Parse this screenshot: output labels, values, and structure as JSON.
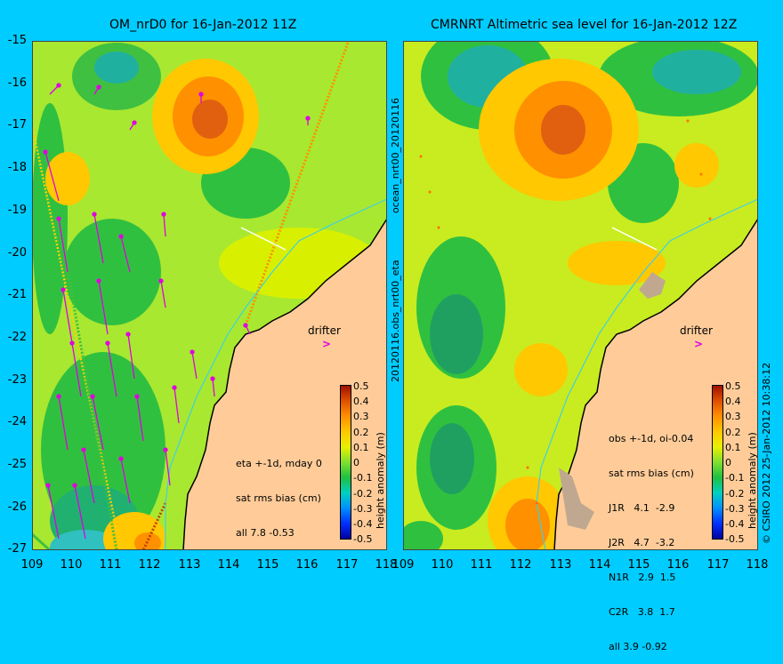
{
  "left_panel": {
    "title": "OM_nrD0 for 16-Jan-2012 11Z",
    "stats_lines": [
      "eta +-1d, mday 0",
      "sat rms bias (cm)",
      "all 7.8 -0.53"
    ],
    "drifter_label": "drifter"
  },
  "right_panel": {
    "title": "CMRNRT Altimetric sea level  for 16-Jan-2012 12Z",
    "stats_lines": [
      "obs +-1d, oi-0.04",
      "sat rms bias (cm)",
      "J1R   4.1  -2.9",
      "J2R   4.7  -3.2",
      "N1R   2.9  1.5",
      "C2R   3.8  1.7",
      "all 3.9 -0.92"
    ],
    "drifter_label": "drifter"
  },
  "middle_vertical_top": "ocean_nrt00_20120116",
  "middle_vertical_bottom": "20120116.obs_nrt00_eta",
  "right_vertical": "© CSIRO 2012  25-Jan-2012 10:38:12",
  "colorbar": {
    "label": "height anomaly (m)",
    "ticks": [
      "0.5",
      "0.4",
      "0.3",
      "0.2",
      "0.1",
      "0",
      "-0.1",
      "-0.2",
      "-0.3",
      "-0.4",
      "-0.5"
    ],
    "colors": [
      "#0000a0",
      "#0030ff",
      "#0090ff",
      "#00d0c0",
      "#20c040",
      "#80e030",
      "#e8f000",
      "#ffc800",
      "#ff9000",
      "#e05000",
      "#a01000"
    ]
  },
  "lat_ticks": [
    "-15",
    "-16",
    "-17",
    "-18",
    "-19",
    "-20",
    "-21",
    "-22",
    "-23",
    "-24",
    "-25",
    "-26",
    "-27"
  ],
  "lon_ticks": [
    "109",
    "110",
    "111",
    "112",
    "113",
    "114",
    "115",
    "116",
    "117",
    "118"
  ],
  "colors": {
    "background": "#00ccff",
    "land": "#ffcc99",
    "arrow": "#e000e0",
    "coast": "#000000"
  }
}
